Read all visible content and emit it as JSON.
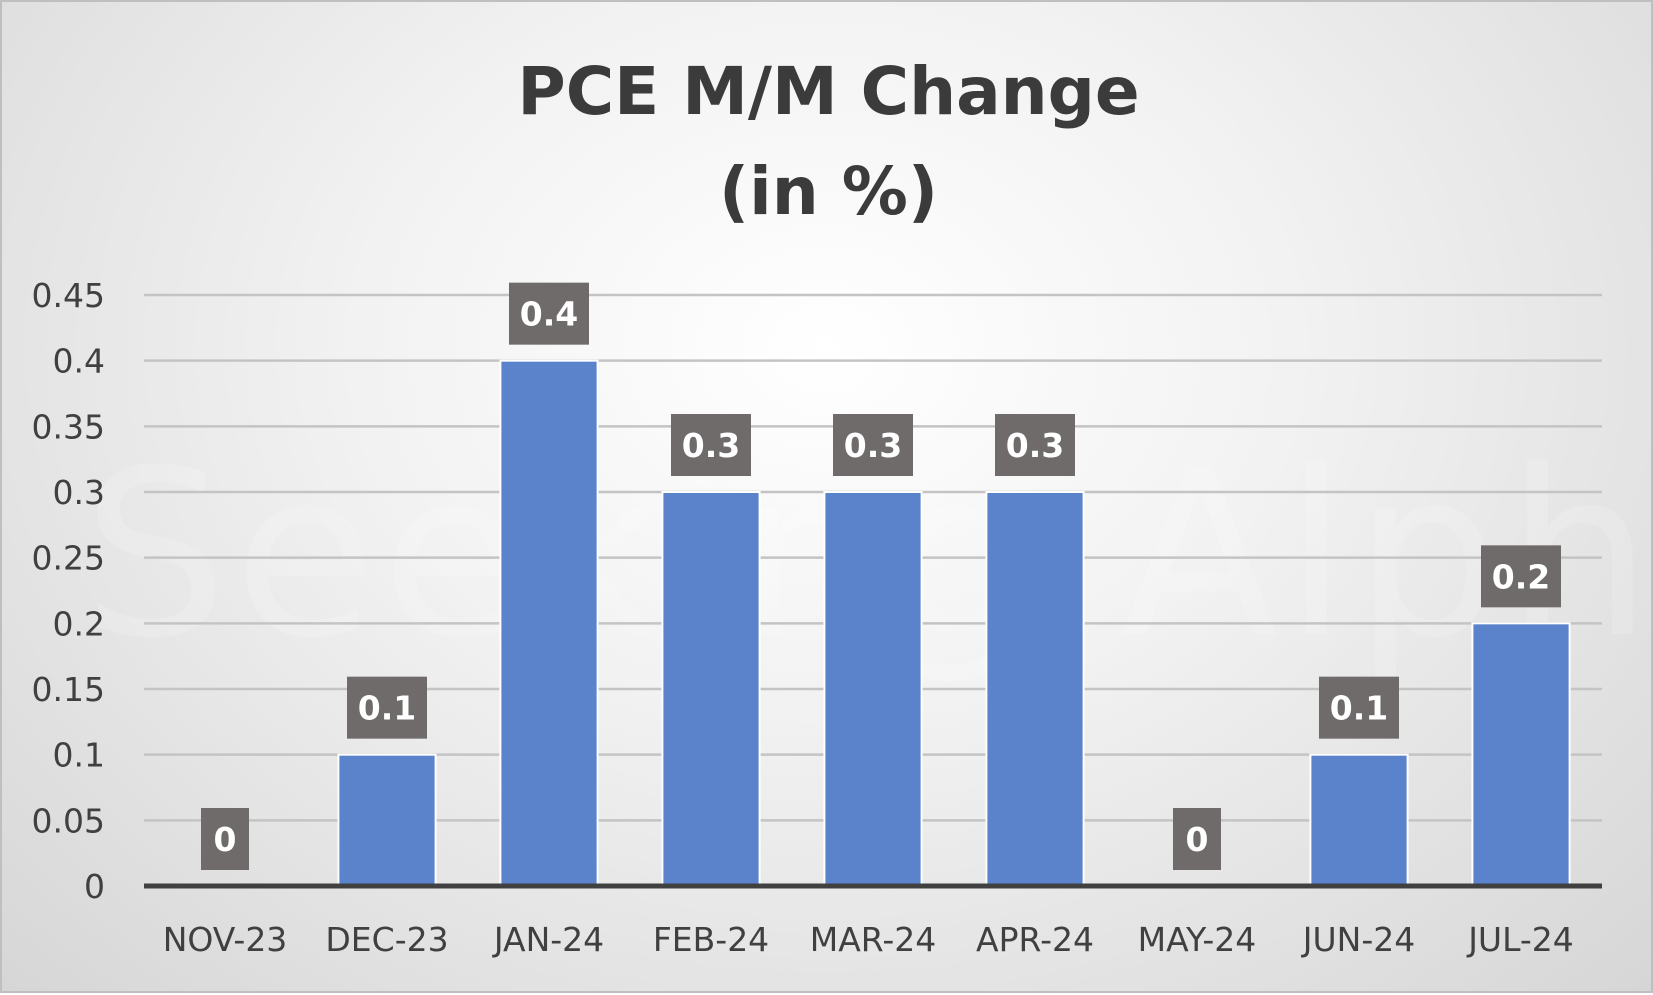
{
  "chart_data": {
    "type": "bar",
    "title": [
      "PCE M/M Change",
      "(in %)"
    ],
    "categories": [
      "NOV-23",
      "DEC-23",
      "JAN-24",
      "FEB-24",
      "MAR-24",
      "APR-24",
      "MAY-24",
      "JUN-24",
      "JUL-24"
    ],
    "values": [
      0,
      0.1,
      0.4,
      0.3,
      0.3,
      0.3,
      0,
      0.1,
      0.2
    ],
    "data_labels": [
      "0",
      "0.1",
      "0.4",
      "0.3",
      "0.3",
      "0.3",
      "0",
      "0.1",
      "0.2"
    ],
    "ylim": [
      0,
      0.45
    ],
    "yticks": [
      0,
      0.05,
      0.1,
      0.15,
      0.2,
      0.25,
      0.3,
      0.35,
      0.4,
      0.45
    ],
    "ytick_labels": [
      "0",
      "0.05",
      "0.1",
      "0.15",
      "0.2",
      "0.25",
      "0.3",
      "0.35",
      "0.4",
      "0.45"
    ],
    "grid": true,
    "legend": "none",
    "colors": {
      "bar": "#5a83cc",
      "bar_edge": "#ffffff",
      "gridline": "#c4c4c4",
      "axis": "#404040",
      "data_label_bg": "#6f6b6b"
    }
  },
  "watermark": "Seeking Alpha"
}
